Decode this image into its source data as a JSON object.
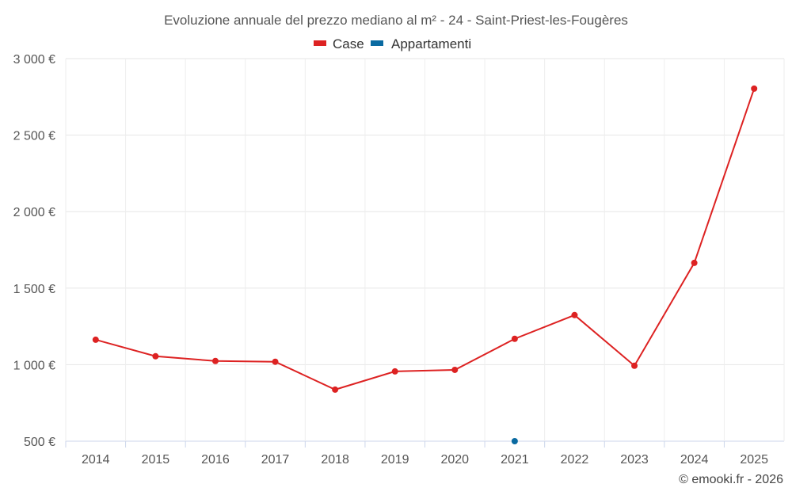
{
  "chart_data": {
    "type": "line",
    "title": "Evoluzione annuale del prezzo mediano al m² - 24 - Saint-Priest-les-Fougères",
    "xlabel": "",
    "ylabel": "",
    "categories": [
      "2014",
      "2015",
      "2016",
      "2017",
      "2018",
      "2019",
      "2020",
      "2021",
      "2022",
      "2023",
      "2024",
      "2025"
    ],
    "ylim": [
      500,
      3000
    ],
    "yticks": [
      500,
      1000,
      1500,
      2000,
      2500,
      3000
    ],
    "ytick_labels": [
      "500 €",
      "1 000 €",
      "1 500 €",
      "2 000 €",
      "2 500 €",
      "3 000 €"
    ],
    "grid": true,
    "legend_position": "top-center",
    "series": [
      {
        "name": "Case",
        "color": "#dd2222",
        "values": [
          1163,
          1055,
          1024,
          1019,
          837,
          956,
          966,
          1169,
          1324,
          993,
          1665,
          2804
        ]
      },
      {
        "name": "Appartamenti",
        "color": "#0a6aa1",
        "values": [
          null,
          null,
          null,
          null,
          null,
          null,
          null,
          500,
          null,
          null,
          null,
          null
        ]
      }
    ],
    "credit": "© emooki.fr - 2026"
  }
}
